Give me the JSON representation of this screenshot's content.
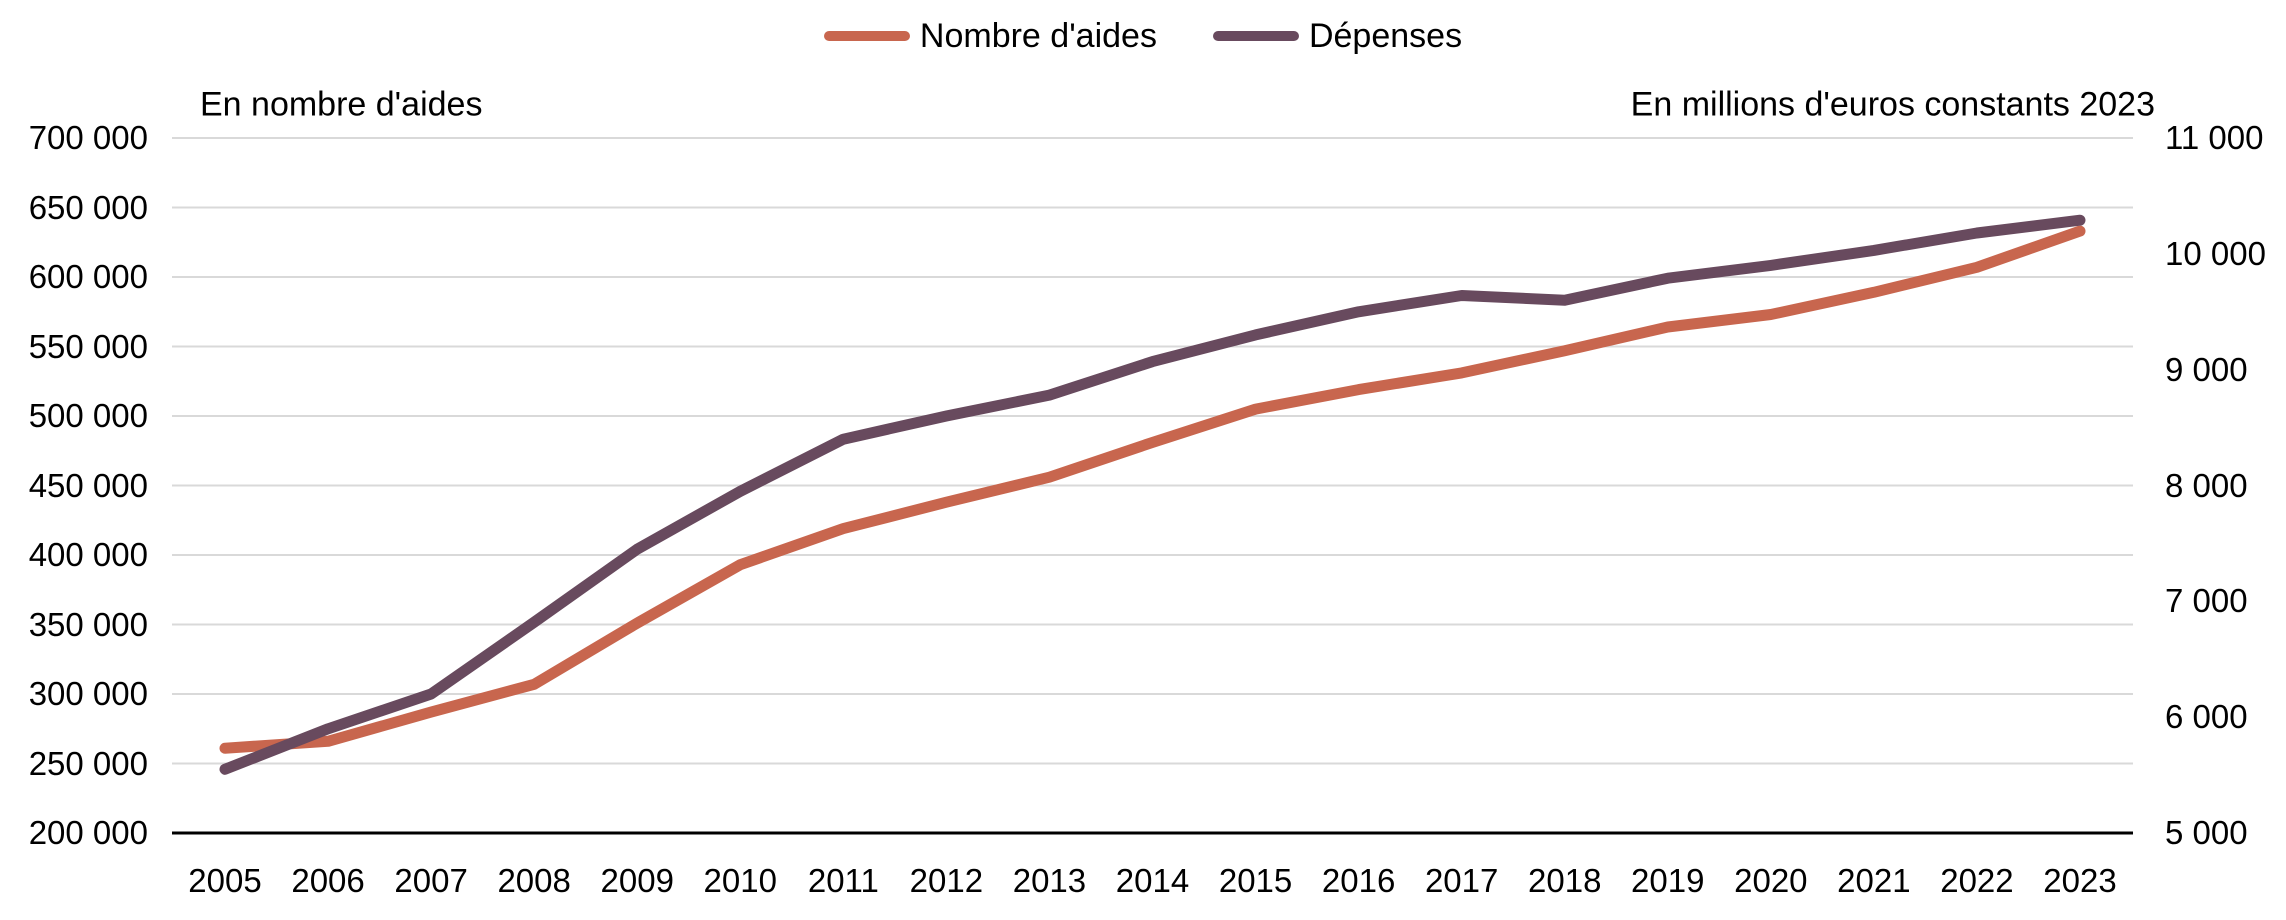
{
  "legend": {
    "items": [
      {
        "label": "Nombre d'aides",
        "color": "#C8664E"
      },
      {
        "label": "Dépenses",
        "color": "#684A5E"
      }
    ]
  },
  "left_axis": {
    "title": "En nombre d'aides",
    "tick_labels": [
      "700 000",
      "650 000",
      "600 000",
      "550 000",
      "500 000",
      "450 000",
      "400 000",
      "350 000",
      "300 000",
      "250 000",
      "200 000"
    ]
  },
  "right_axis": {
    "title": "En millions d'euros constants 2023",
    "tick_labels": [
      "11 000",
      "10 000",
      "9 000",
      "8 000",
      "7 000",
      "6 000",
      "5 000"
    ]
  },
  "x_axis": {
    "year_labels": [
      "2005",
      "2006",
      "2007",
      "2008",
      "2009",
      "2010",
      "2011",
      "2012",
      "2013",
      "2014",
      "2015",
      "2016",
      "2017",
      "2018",
      "2019",
      "2020",
      "2021",
      "2022",
      "2023"
    ]
  },
  "chart_data": {
    "type": "line",
    "x": [
      2005,
      2006,
      2007,
      2008,
      2009,
      2010,
      2011,
      2012,
      2013,
      2014,
      2015,
      2016,
      2017,
      2018,
      2019,
      2020,
      2021,
      2022,
      2023
    ],
    "series": [
      {
        "name": "Nombre d'aides",
        "axis": "left",
        "color": "#C8664E",
        "values": [
          261000,
          266000,
          287000,
          307000,
          351000,
          393000,
          419000,
          438000,
          456000,
          481000,
          505000,
          519000,
          531000,
          547000,
          564000,
          573000,
          589000,
          607000,
          633000
        ]
      },
      {
        "name": "Dépenses",
        "axis": "right",
        "color": "#684A5E",
        "values": [
          5550,
          5900,
          6200,
          6820,
          7450,
          7950,
          8400,
          8600,
          8780,
          9070,
          9300,
          9500,
          9640,
          9600,
          9790,
          9900,
          10030,
          10180,
          10290
        ]
      }
    ],
    "left_axis_label": "En nombre d'aides",
    "right_axis_label": "En millions d'euros constants 2023",
    "left_ylim": [
      200000,
      700000
    ],
    "left_tick_step": 50000,
    "right_ylim": [
      5000,
      11000
    ],
    "right_tick_step": 1000,
    "grid": "horizontal",
    "gridline_color": "#D9D9D9",
    "axis_line_color": "#000000",
    "legend_position": "top-center"
  }
}
